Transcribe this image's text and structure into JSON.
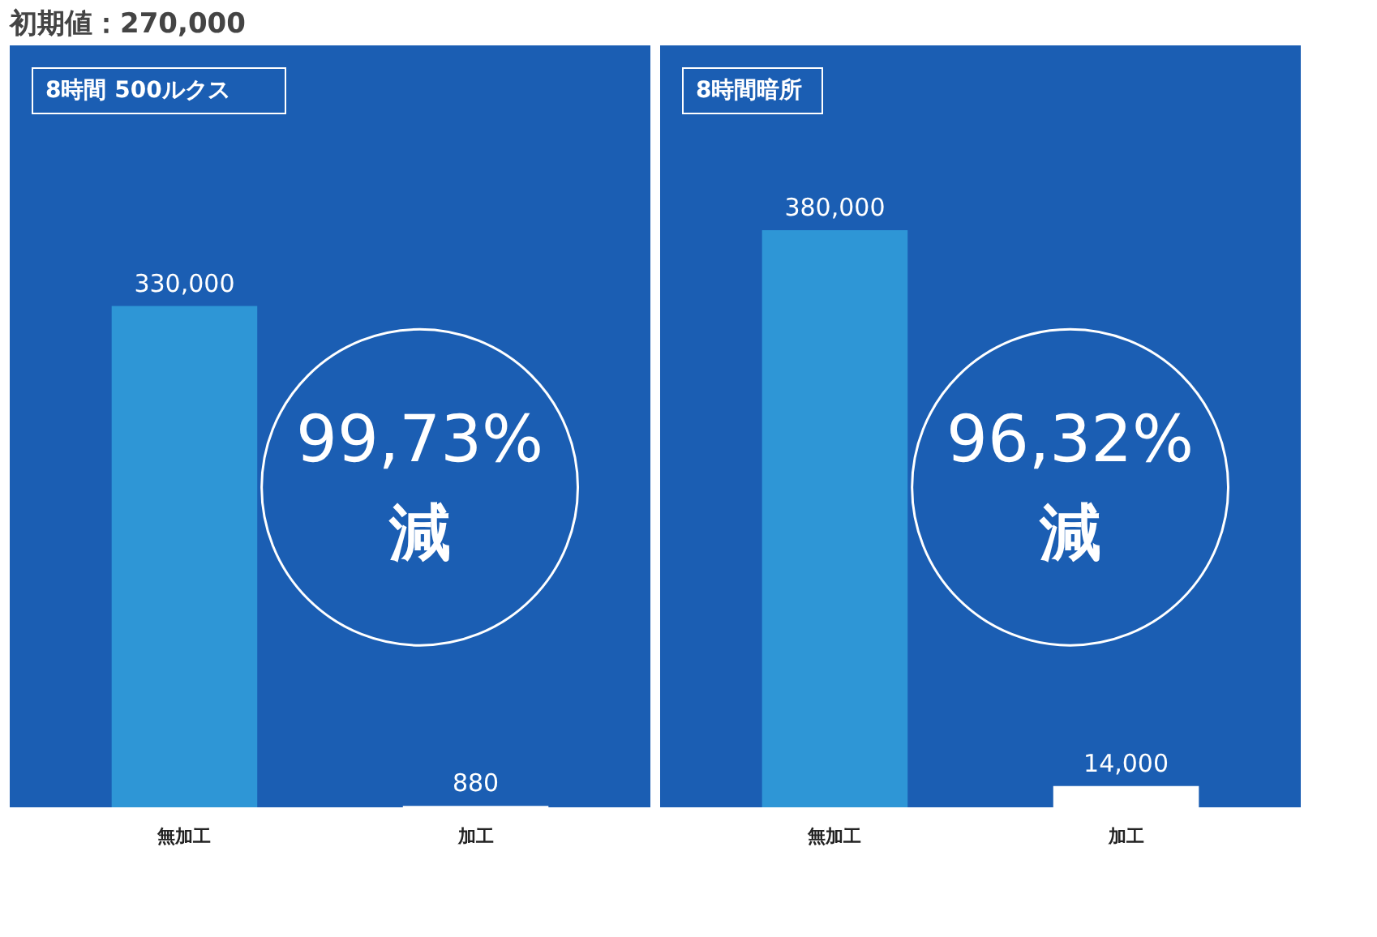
{
  "chart_data": [
    {
      "type": "bar",
      "title": "8時間 500ルクス",
      "subtitle": "初期値：270,000",
      "categories": [
        "無加工",
        "加工"
      ],
      "values": [
        330000,
        880
      ],
      "value_labels": [
        "330,000",
        "880"
      ],
      "colors": [
        "#2e96d6",
        "#ffffff"
      ],
      "tick_labels": "x",
      "annotations": [
        "99,73%",
        "減"
      ]
    },
    {
      "type": "bar",
      "title": "8時間暗所",
      "categories": [
        "無加工",
        "加工"
      ],
      "values": [
        380000,
        14000
      ],
      "value_labels": [
        "380,000",
        "14,000"
      ],
      "colors": [
        "#2e96d6",
        "#ffffff"
      ],
      "tick_labels": "x",
      "annotations": [
        "96,32%",
        "減"
      ]
    }
  ]
}
